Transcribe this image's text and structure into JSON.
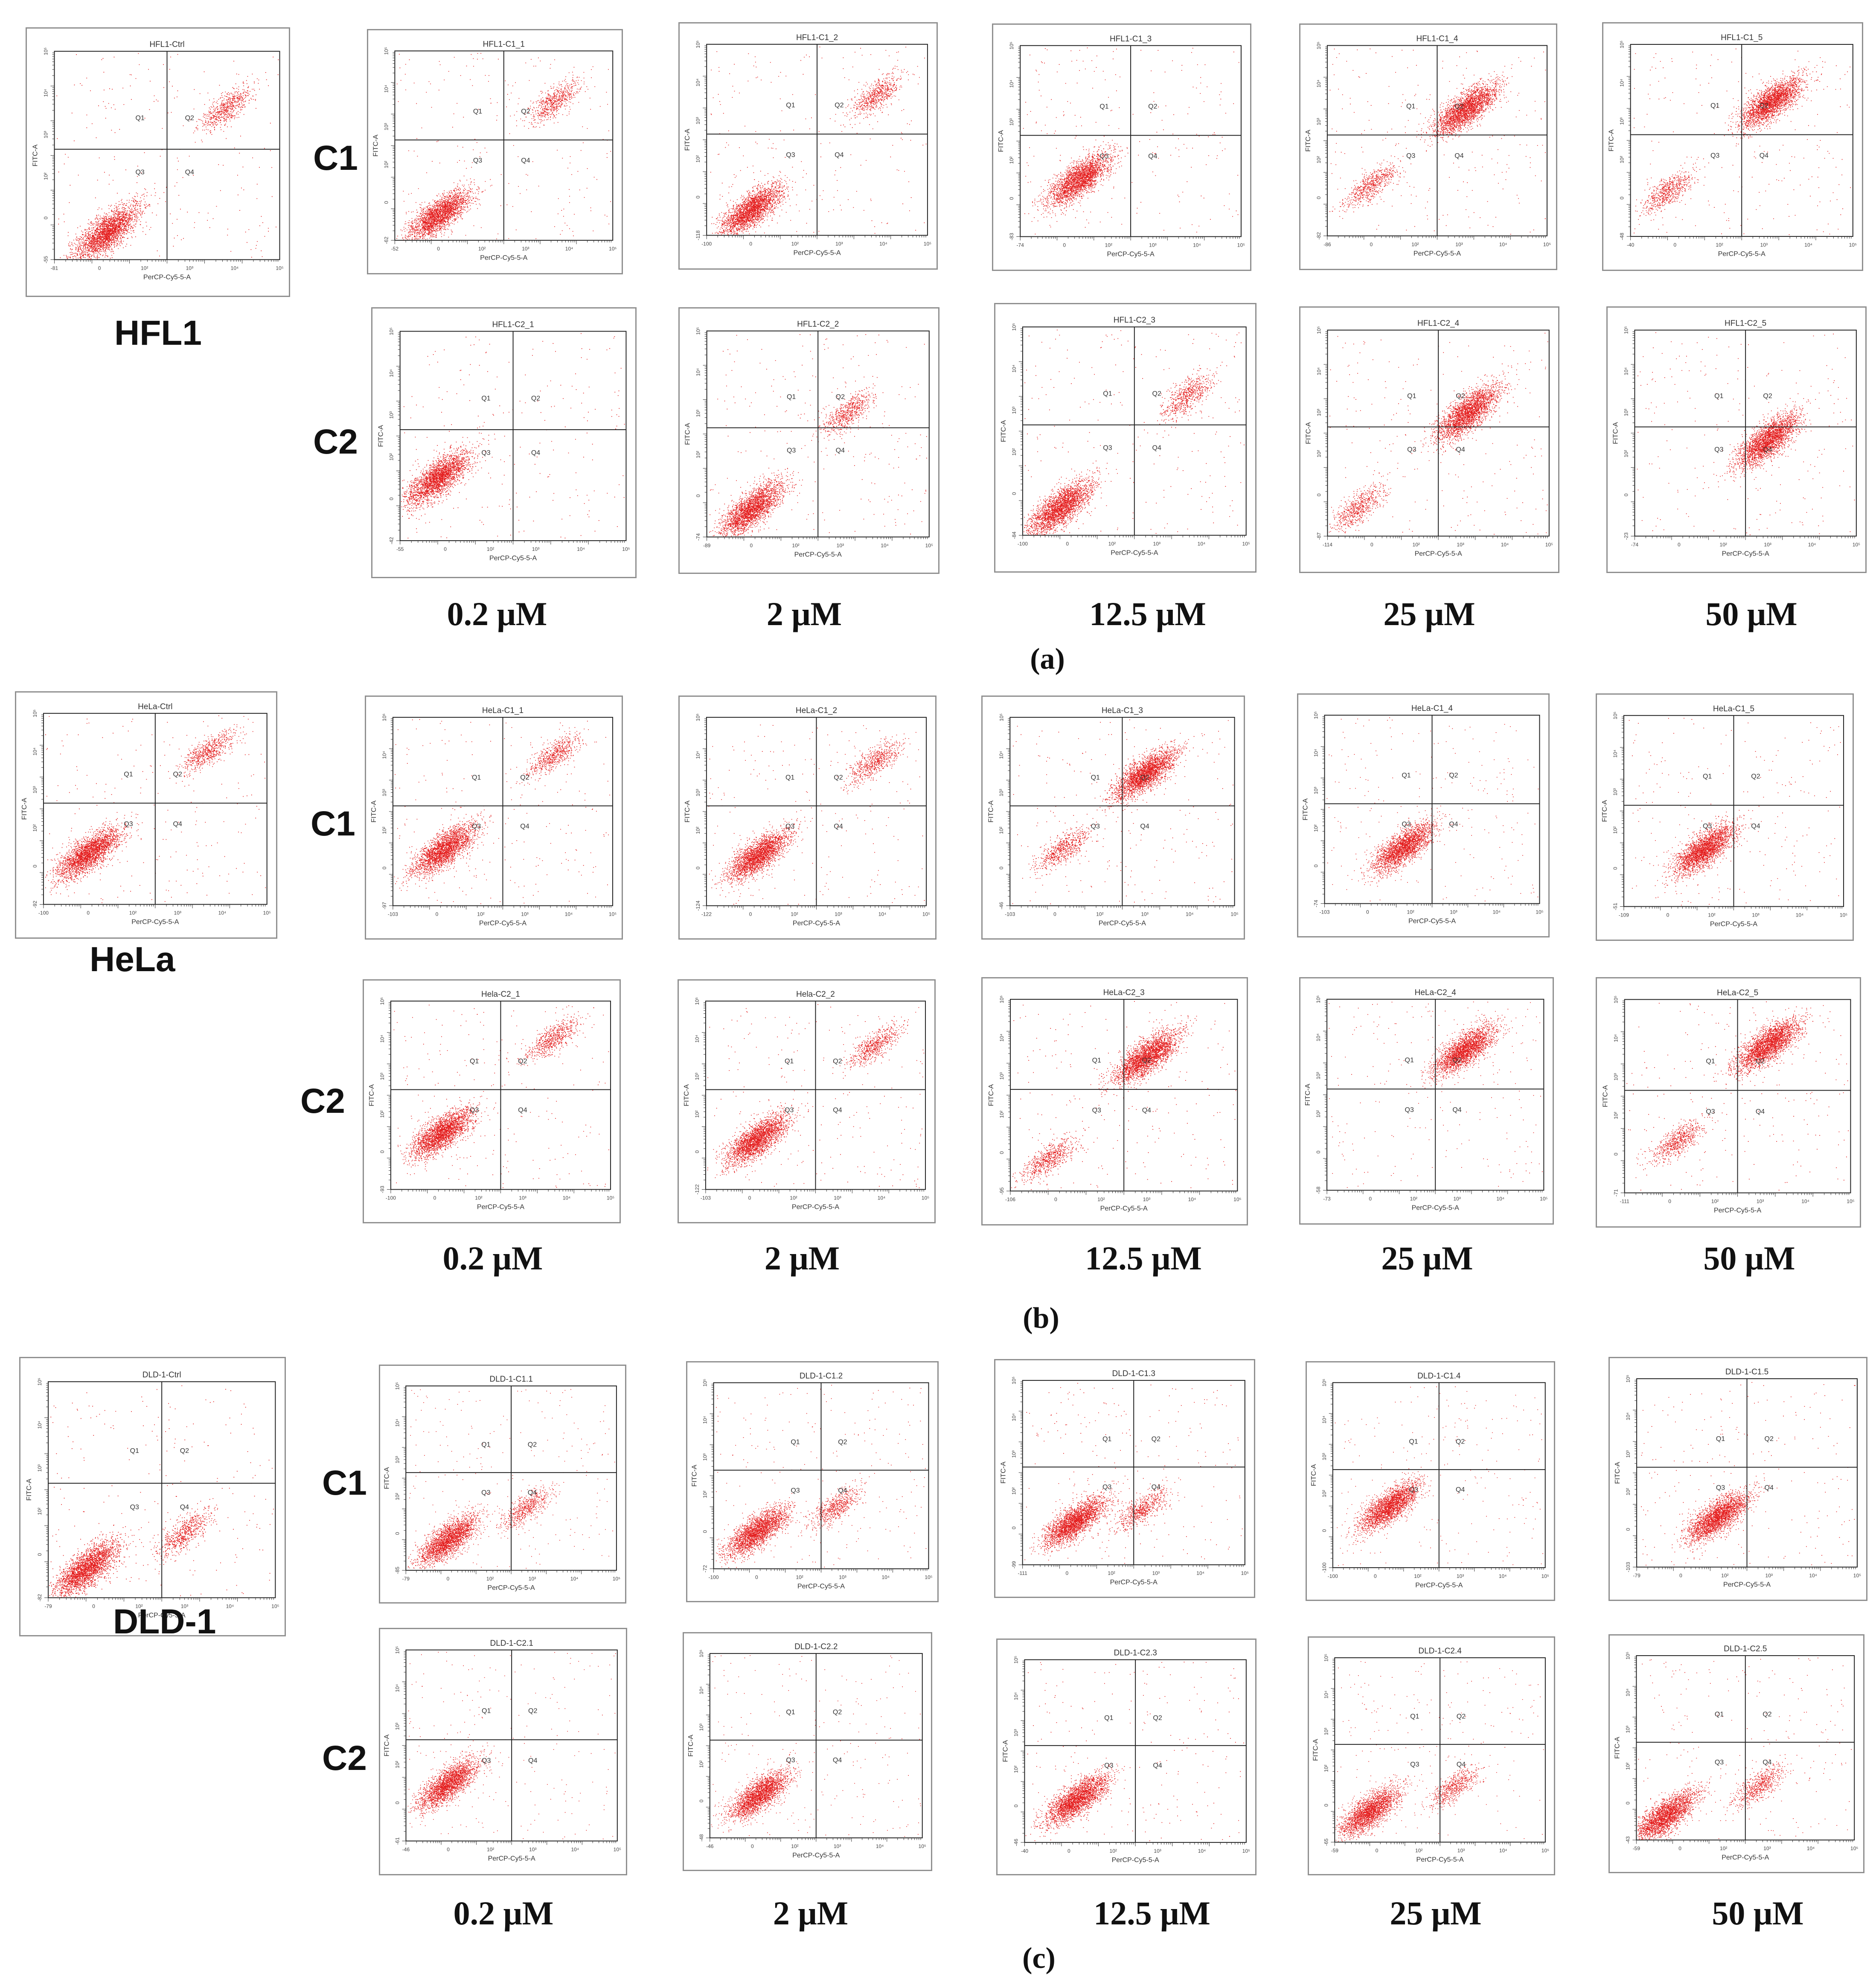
{
  "figure": {
    "sections": [
      {
        "id": "a",
        "caption": "(a)",
        "cell_line": "HFL1",
        "row_labels": [
          "C1",
          "C2"
        ],
        "concentrations": [
          "0.2 μM",
          "2 μM",
          "12.5 μM",
          "25 μM",
          "50 μM"
        ]
      },
      {
        "id": "b",
        "caption": "(b)",
        "cell_line": "HeLa",
        "row_labels": [
          "C1",
          "C2"
        ],
        "concentrations": [
          "0.2 μM",
          "2 μM",
          "12.5 μM",
          "25 μM",
          "50 μM"
        ]
      },
      {
        "id": "c",
        "caption": "(c)",
        "cell_line": "DLD-1",
        "row_labels": [
          "C1",
          "C2"
        ],
        "concentrations": [
          "0.2 μM",
          "2 μM",
          "12.5 μM",
          "25 μM",
          "50 μM"
        ]
      }
    ]
  },
  "chart_data": [
    {
      "type": "scatter",
      "title": "HFL1-Ctrl",
      "xlabel": "PerCP-Cy5-5-A",
      "ylabel": "FITC-A",
      "xlim": [
        -81,
        100000
      ],
      "ylim": [
        -55,
        100000
      ],
      "x_scale": "log",
      "y_scale": "log",
      "grid": false,
      "quadrant_labels": [
        "Q1",
        "Q2",
        "Q3",
        "Q4"
      ],
      "clusters": [
        {
          "x": -0.3,
          "y": -0.6,
          "density": "high"
        },
        {
          "x": 1.3,
          "y": 1.2,
          "density": "low"
        }
      ]
    },
    {
      "type": "scatter",
      "title": "HFL1-C1_1",
      "xlabel": "PerCP-Cy5-5-A",
      "ylabel": "FITC-A",
      "xlim": [
        -52,
        100000
      ],
      "ylim": [
        -62,
        100000
      ],
      "x_scale": "log",
      "y_scale": "log",
      "grid": false,
      "quadrant_labels": [
        "Q1",
        "Q2",
        "Q3",
        "Q4"
      ],
      "clusters": [
        {
          "x": -0.4,
          "y": -0.6,
          "density": "high"
        },
        {
          "x": 1.2,
          "y": 1.2,
          "density": "low"
        }
      ]
    },
    {
      "type": "scatter",
      "title": "HFL1-C1_2",
      "xlabel": "PerCP-Cy5-5-A",
      "ylabel": "FITC-A",
      "xlim": [
        -100,
        100000
      ],
      "ylim": [
        -118,
        100000
      ],
      "x_scale": "log",
      "y_scale": "log",
      "grid": false,
      "quadrant_labels": [
        "Q1",
        "Q2",
        "Q3",
        "Q4"
      ],
      "clusters": [
        {
          "x": -0.4,
          "y": -0.6,
          "density": "high"
        },
        {
          "x": 1.3,
          "y": 1.2,
          "density": "low"
        }
      ]
    },
    {
      "type": "scatter",
      "title": "HFL1-C1_3",
      "xlabel": "PerCP-Cy5-5-A",
      "ylabel": "FITC-A",
      "xlim": [
        -74,
        100000
      ],
      "ylim": [
        -83,
        100000
      ],
      "x_scale": "log",
      "y_scale": "log",
      "grid": false,
      "quadrant_labels": [
        "Q1",
        "Q2",
        "Q3",
        "Q4"
      ],
      "clusters": [
        {
          "x": -0.2,
          "y": -0.1,
          "density": "high"
        }
      ]
    },
    {
      "type": "scatter",
      "title": "HFL1-C1_4",
      "xlabel": "PerCP-Cy5-5-A",
      "ylabel": "FITC-A",
      "xlim": [
        -86,
        100000
      ],
      "ylim": [
        -82,
        100000
      ],
      "x_scale": "log",
      "y_scale": "log",
      "grid": false,
      "quadrant_labels": [
        "Q1",
        "Q2",
        "Q3",
        "Q4"
      ],
      "clusters": [
        {
          "x": -0.4,
          "y": -0.2,
          "density": "low"
        },
        {
          "x": 0.9,
          "y": 1.0,
          "density": "high"
        }
      ]
    },
    {
      "type": "scatter",
      "title": "HFL1-C1_5",
      "xlabel": "PerCP-Cy5-5-A",
      "ylabel": "FITC-A",
      "xlim": [
        -40,
        100000
      ],
      "ylim": [
        -48,
        100000
      ],
      "x_scale": "log",
      "y_scale": "log",
      "grid": false,
      "quadrant_labels": [
        "Q1",
        "Q2",
        "Q3",
        "Q4"
      ],
      "clusters": [
        {
          "x": -0.5,
          "y": -0.3,
          "density": "low"
        },
        {
          "x": 0.9,
          "y": 1.1,
          "density": "high"
        }
      ]
    },
    {
      "type": "scatter",
      "title": "HFL1-C2_1",
      "xlabel": "PerCP-Cy5-5-A",
      "ylabel": "FITC-A",
      "xlim": [
        -55,
        100000
      ],
      "ylim": [
        -42,
        100000
      ],
      "x_scale": "log",
      "y_scale": "log",
      "grid": false,
      "quadrant_labels": [
        "Q1",
        "Q2",
        "Q3",
        "Q4"
      ],
      "clusters": [
        {
          "x": -0.5,
          "y": -0.1,
          "density": "high"
        }
      ]
    },
    {
      "type": "scatter",
      "title": "HFL1-C2_2",
      "xlabel": "PerCP-Cy5-5-A",
      "ylabel": "FITC-A",
      "xlim": [
        -89,
        100000
      ],
      "ylim": [
        -74,
        100000
      ],
      "x_scale": "log",
      "y_scale": "log",
      "grid": false,
      "quadrant_labels": [
        "Q1",
        "Q2",
        "Q3",
        "Q4"
      ],
      "clusters": [
        {
          "x": -0.4,
          "y": -0.6,
          "density": "high"
        },
        {
          "x": 0.9,
          "y": 0.8,
          "density": "low"
        }
      ]
    },
    {
      "type": "scatter",
      "title": "HFL1-C2_3",
      "xlabel": "PerCP-Cy5-5-A",
      "ylabel": "FITC-A",
      "xlim": [
        -100,
        100000
      ],
      "ylim": [
        -84,
        100000
      ],
      "x_scale": "log",
      "y_scale": "log",
      "grid": false,
      "quadrant_labels": [
        "Q1",
        "Q2",
        "Q3",
        "Q4"
      ],
      "clusters": [
        {
          "x": -0.5,
          "y": -0.6,
          "density": "high"
        },
        {
          "x": 1.2,
          "y": 1.0,
          "density": "low"
        }
      ]
    },
    {
      "type": "scatter",
      "title": "HFL1-C2_4",
      "xlabel": "PerCP-Cy5-5-A",
      "ylabel": "FITC-A",
      "xlim": [
        -114,
        100000
      ],
      "ylim": [
        -87,
        100000
      ],
      "x_scale": "log",
      "y_scale": "log",
      "grid": false,
      "quadrant_labels": [
        "Q1",
        "Q2",
        "Q3",
        "Q4"
      ],
      "clusters": [
        {
          "x": -0.6,
          "y": -0.6,
          "density": "low"
        },
        {
          "x": 0.9,
          "y": 0.8,
          "density": "high"
        }
      ]
    },
    {
      "type": "scatter",
      "title": "HFL1-C2_5",
      "xlabel": "PerCP-Cy5-5-A",
      "ylabel": "FITC-A",
      "xlim": [
        -74,
        100000
      ],
      "ylim": [
        -23,
        100000
      ],
      "x_scale": "log",
      "y_scale": "log",
      "grid": false,
      "quadrant_labels": [
        "Q1",
        "Q2",
        "Q3",
        "Q4"
      ],
      "clusters": [
        {
          "x": 0.8,
          "y": 0.4,
          "density": "high"
        }
      ]
    },
    {
      "type": "scatter",
      "title": "HeLa-Ctrl",
      "xlabel": "PerCP-Cy5-5-A",
      "ylabel": "FITC-A",
      "xlim": [
        -100,
        100000
      ],
      "ylim": [
        -92,
        100000
      ],
      "x_scale": "log",
      "y_scale": "log",
      "grid": false,
      "quadrant_labels": [
        "Q1",
        "Q2",
        "Q3",
        "Q4"
      ],
      "clusters": [
        {
          "x": -0.4,
          "y": -0.2,
          "density": "high"
        },
        {
          "x": 1.2,
          "y": 1.4,
          "density": "low"
        }
      ]
    },
    {
      "type": "scatter",
      "title": "HeLa-C1_1",
      "xlabel": "PerCP-Cy5-5-A",
      "ylabel": "FITC-A",
      "xlim": [
        -103,
        100000
      ],
      "ylim": [
        -97,
        100000
      ],
      "x_scale": "log",
      "y_scale": "log",
      "grid": false,
      "quadrant_labels": [
        "Q1",
        "Q2",
        "Q3",
        "Q4"
      ],
      "clusters": [
        {
          "x": -0.3,
          "y": -0.1,
          "density": "high"
        },
        {
          "x": 1.2,
          "y": 1.4,
          "density": "low"
        }
      ]
    },
    {
      "type": "scatter",
      "title": "HeLa-C1_2",
      "xlabel": "PerCP-Cy5-5-A",
      "ylabel": "FITC-A",
      "xlim": [
        -122,
        100000
      ],
      "ylim": [
        -124,
        100000
      ],
      "x_scale": "log",
      "y_scale": "log",
      "grid": false,
      "quadrant_labels": [
        "Q1",
        "Q2",
        "Q3",
        "Q4"
      ],
      "clusters": [
        {
          "x": -0.3,
          "y": -0.2,
          "density": "high"
        },
        {
          "x": 1.3,
          "y": 1.3,
          "density": "low"
        }
      ]
    },
    {
      "type": "scatter",
      "title": "HeLa-C1_3",
      "xlabel": "PerCP-Cy5-5-A",
      "ylabel": "FITC-A",
      "xlim": [
        -103,
        100000
      ],
      "ylim": [
        -46,
        100000
      ],
      "x_scale": "log",
      "y_scale": "log",
      "grid": false,
      "quadrant_labels": [
        "Q1",
        "Q2",
        "Q3",
        "Q4"
      ],
      "clusters": [
        {
          "x": -0.3,
          "y": -0.1,
          "density": "low"
        },
        {
          "x": 0.8,
          "y": 1.1,
          "density": "high"
        }
      ]
    },
    {
      "type": "scatter",
      "title": "HeLa-C1_4",
      "xlabel": "PerCP-Cy5-5-A",
      "ylabel": "FITC-A",
      "xlim": [
        -103,
        100000
      ],
      "ylim": [
        -74,
        100000
      ],
      "x_scale": "log",
      "y_scale": "log",
      "grid": false,
      "quadrant_labels": [
        "Q1",
        "Q2",
        "Q3",
        "Q4"
      ],
      "clusters": [
        {
          "x": 0.1,
          "y": -0.1,
          "density": "high"
        }
      ]
    },
    {
      "type": "scatter",
      "title": "HeLa-C1_5",
      "xlabel": "PerCP-Cy5-5-A",
      "ylabel": "FITC-A",
      "xlim": [
        -109,
        100000
      ],
      "ylim": [
        -51,
        100000
      ],
      "x_scale": "log",
      "y_scale": "log",
      "grid": false,
      "quadrant_labels": [
        "Q1",
        "Q2",
        "Q3",
        "Q4"
      ],
      "clusters": [
        {
          "x": 0.1,
          "y": -0.1,
          "density": "high"
        }
      ]
    },
    {
      "type": "scatter",
      "title": "Hela-C2_1",
      "xlabel": "PerCP-Cy5-5-A",
      "ylabel": "FITC-A",
      "xlim": [
        -100,
        100000
      ],
      "ylim": [
        -93,
        100000
      ],
      "x_scale": "log",
      "y_scale": "log",
      "grid": false,
      "quadrant_labels": [
        "Q1",
        "Q2",
        "Q3",
        "Q4"
      ],
      "clusters": [
        {
          "x": -0.3,
          "y": -0.1,
          "density": "high"
        },
        {
          "x": 1.2,
          "y": 1.4,
          "density": "low"
        }
      ]
    },
    {
      "type": "scatter",
      "title": "Hela-C2_2",
      "xlabel": "PerCP-Cy5-5-A",
      "ylabel": "FITC-A",
      "xlim": [
        -103,
        100000
      ],
      "ylim": [
        -122,
        100000
      ],
      "x_scale": "log",
      "y_scale": "log",
      "grid": false,
      "quadrant_labels": [
        "Q1",
        "Q2",
        "Q3",
        "Q4"
      ],
      "clusters": [
        {
          "x": -0.3,
          "y": -0.2,
          "density": "high"
        },
        {
          "x": 1.3,
          "y": 1.3,
          "density": "low"
        }
      ]
    },
    {
      "type": "scatter",
      "title": "HeLa-C2_3",
      "xlabel": "PerCP-Cy5-5-A",
      "ylabel": "FITC-A",
      "xlim": [
        -106,
        100000
      ],
      "ylim": [
        -95,
        100000
      ],
      "x_scale": "log",
      "y_scale": "log",
      "grid": false,
      "quadrant_labels": [
        "Q1",
        "Q2",
        "Q3",
        "Q4"
      ],
      "clusters": [
        {
          "x": -0.5,
          "y": -0.5,
          "density": "low"
        },
        {
          "x": 0.8,
          "y": 1.1,
          "density": "high"
        }
      ]
    },
    {
      "type": "scatter",
      "title": "HeLa-C2_4",
      "xlabel": "PerCP-Cy5-5-A",
      "ylabel": "FITC-A",
      "xlim": [
        -73,
        100000
      ],
      "ylim": [
        -58,
        100000
      ],
      "x_scale": "log",
      "y_scale": "log",
      "grid": false,
      "quadrant_labels": [
        "Q1",
        "Q2",
        "Q3",
        "Q4"
      ],
      "clusters": [
        {
          "x": 0.9,
          "y": 1.2,
          "density": "high"
        }
      ]
    },
    {
      "type": "scatter",
      "title": "HeLa-C2_5",
      "xlabel": "PerCP-Cy5-5-A",
      "ylabel": "FITC-A",
      "xlim": [
        -111,
        100000
      ],
      "ylim": [
        -71,
        100000
      ],
      "x_scale": "log",
      "y_scale": "log",
      "grid": false,
      "quadrant_labels": [
        "Q1",
        "Q2",
        "Q3",
        "Q4"
      ],
      "clusters": [
        {
          "x": -0.3,
          "y": -0.2,
          "density": "low"
        },
        {
          "x": 0.9,
          "y": 1.3,
          "density": "high"
        }
      ]
    },
    {
      "type": "scatter",
      "title": "DLD-1-Ctrl",
      "xlabel": "PerCP-Cy5-5-A",
      "ylabel": "FITC-A",
      "xlim": [
        -79,
        100000
      ],
      "ylim": [
        -82,
        100000
      ],
      "x_scale": "log",
      "y_scale": "log",
      "grid": false,
      "quadrant_labels": [
        "Q1",
        "Q2",
        "Q3",
        "Q4"
      ],
      "clusters": [
        {
          "x": -0.5,
          "y": -0.6,
          "density": "high"
        },
        {
          "x": 0.8,
          "y": -0.1,
          "density": "low"
        }
      ]
    },
    {
      "type": "scatter",
      "title": "DLD-1-C1.1",
      "xlabel": "PerCP-Cy5-5-A",
      "ylabel": "FITC-A",
      "xlim": [
        -79,
        100000
      ],
      "ylim": [
        -85,
        100000
      ],
      "x_scale": "log",
      "y_scale": "log",
      "grid": false,
      "quadrant_labels": [
        "Q1",
        "Q2",
        "Q3",
        "Q4"
      ],
      "clusters": [
        {
          "x": -0.4,
          "y": -0.5,
          "density": "high"
        },
        {
          "x": 0.7,
          "y": 0.0,
          "density": "low"
        }
      ]
    },
    {
      "type": "scatter",
      "title": "DLD-1-C1.2",
      "xlabel": "PerCP-Cy5-5-A",
      "ylabel": "FITC-A",
      "xlim": [
        -100,
        100000
      ],
      "ylim": [
        -72,
        100000
      ],
      "x_scale": "log",
      "y_scale": "log",
      "grid": false,
      "quadrant_labels": [
        "Q1",
        "Q2",
        "Q3",
        "Q4"
      ],
      "clusters": [
        {
          "x": -0.4,
          "y": -0.4,
          "density": "high"
        },
        {
          "x": 0.7,
          "y": 0.0,
          "density": "low"
        }
      ]
    },
    {
      "type": "scatter",
      "title": "DLD-1-C1.3",
      "xlabel": "PerCP-Cy5-5-A",
      "ylabel": "FITC-A",
      "xlim": [
        -111,
        100000
      ],
      "ylim": [
        -99,
        100000
      ],
      "x_scale": "log",
      "y_scale": "log",
      "grid": false,
      "quadrant_labels": [
        "Q1",
        "Q2",
        "Q3",
        "Q4"
      ],
      "clusters": [
        {
          "x": -0.3,
          "y": -0.3,
          "density": "high"
        },
        {
          "x": 0.6,
          "y": -0.1,
          "density": "low"
        }
      ]
    },
    {
      "type": "scatter",
      "title": "DLD-1-C1.4",
      "xlabel": "PerCP-Cy5-5-A",
      "ylabel": "FITC-A",
      "xlim": [
        -100,
        100000
      ],
      "ylim": [
        -100,
        100000
      ],
      "x_scale": "log",
      "y_scale": "log",
      "grid": false,
      "quadrant_labels": [
        "Q1",
        "Q2",
        "Q3",
        "Q4"
      ],
      "clusters": [
        {
          "x": -0.2,
          "y": 0.0,
          "density": "high"
        }
      ]
    },
    {
      "type": "scatter",
      "title": "DLD-1-C1.5",
      "xlabel": "PerCP-Cy5-5-A",
      "ylabel": "FITC-A",
      "xlim": [
        -79,
        100000
      ],
      "ylim": [
        -103,
        100000
      ],
      "x_scale": "log",
      "y_scale": "log",
      "grid": false,
      "quadrant_labels": [
        "Q1",
        "Q2",
        "Q3",
        "Q4"
      ],
      "clusters": [
        {
          "x": 0.1,
          "y": -0.2,
          "density": "high"
        }
      ]
    },
    {
      "type": "scatter",
      "title": "DLD-1-C2.1",
      "xlabel": "PerCP-Cy5-5-A",
      "ylabel": "FITC-A",
      "xlim": [
        -46,
        100000
      ],
      "ylim": [
        -61,
        100000
      ],
      "x_scale": "log",
      "y_scale": "log",
      "grid": false,
      "quadrant_labels": [
        "Q1",
        "Q2",
        "Q3",
        "Q4"
      ],
      "clusters": [
        {
          "x": -0.4,
          "y": -0.1,
          "density": "high"
        }
      ]
    },
    {
      "type": "scatter",
      "title": "DLD-1-C2.2",
      "xlabel": "PerCP-Cy5-5-A",
      "ylabel": "FITC-A",
      "xlim": [
        -46,
        100000
      ],
      "ylim": [
        -48,
        100000
      ],
      "x_scale": "log",
      "y_scale": "log",
      "grid": false,
      "quadrant_labels": [
        "Q1",
        "Q2",
        "Q3",
        "Q4"
      ],
      "clusters": [
        {
          "x": -0.3,
          "y": -0.3,
          "density": "high"
        }
      ]
    },
    {
      "type": "scatter",
      "title": "DLD-1-C2.3",
      "xlabel": "PerCP-Cy5-5-A",
      "ylabel": "FITC-A",
      "xlim": [
        -40,
        100000
      ],
      "ylim": [
        -46,
        100000
      ],
      "x_scale": "log",
      "y_scale": "log",
      "grid": false,
      "quadrant_labels": [
        "Q1",
        "Q2",
        "Q3",
        "Q4"
      ],
      "clusters": [
        {
          "x": -0.3,
          "y": -0.3,
          "density": "high"
        }
      ]
    },
    {
      "type": "scatter",
      "title": "DLD-1-C2.4",
      "xlabel": "PerCP-Cy5-5-A",
      "ylabel": "FITC-A",
      "xlim": [
        -59,
        100000
      ],
      "ylim": [
        -65,
        100000
      ],
      "x_scale": "log",
      "y_scale": "log",
      "grid": false,
      "quadrant_labels": [
        "Q1",
        "Q2",
        "Q3",
        "Q4"
      ],
      "clusters": [
        {
          "x": -0.5,
          "y": -0.5,
          "density": "high"
        },
        {
          "x": 0.7,
          "y": -0.1,
          "density": "low"
        }
      ]
    },
    {
      "type": "scatter",
      "title": "DLD-1-C2.5",
      "xlabel": "PerCP-Cy5-5-A",
      "ylabel": "FITC-A",
      "xlim": [
        -59,
        100000
      ],
      "ylim": [
        -43,
        100000
      ],
      "x_scale": "log",
      "y_scale": "log",
      "grid": false,
      "quadrant_labels": [
        "Q1",
        "Q2",
        "Q3",
        "Q4"
      ],
      "clusters": [
        {
          "x": -0.6,
          "y": -0.6,
          "density": "high"
        },
        {
          "x": 0.7,
          "y": -0.1,
          "density": "low"
        }
      ]
    }
  ]
}
